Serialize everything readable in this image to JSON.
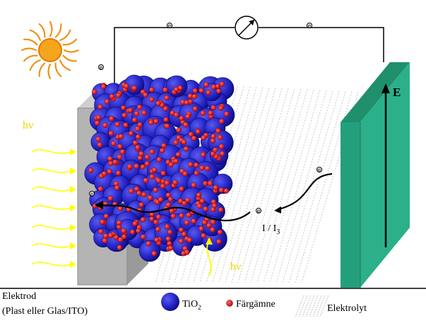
{
  "labels": {
    "hv_left": "hν",
    "hv_bottom": "hν",
    "field": "E",
    "redox_main": "I",
    "redox_sep": " / ",
    "redox_second": "I",
    "redox_sub": "3",
    "electron": "e"
  },
  "legend": {
    "electrode_line1": "Elektrod",
    "electrode_line2": "(Plast eller Glas/ITO)",
    "tio2_main": "TiO",
    "tio2_sub": "2",
    "dye": "Färgämne",
    "electrolyte": "Elektrolyt"
  },
  "colors": {
    "sun": "#f39c12",
    "light_rays": "#ffff00",
    "electrode_left": "#a9a9a9",
    "electrode_right": "#2bb08a",
    "tio2": "#2a2ad0",
    "dye": "#e00000",
    "electrolyte_hatch": "#c8c8c8"
  }
}
